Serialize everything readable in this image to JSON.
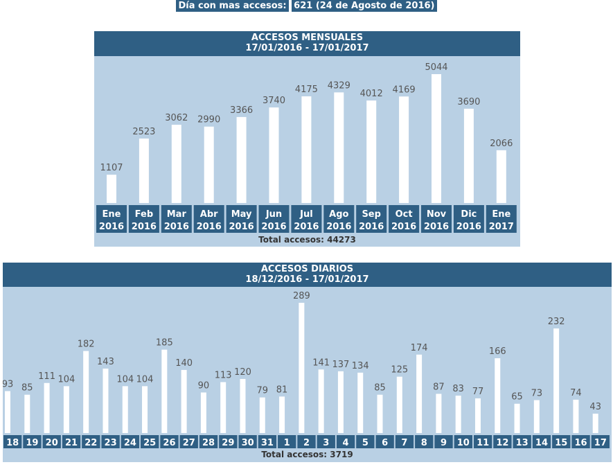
{
  "peak": {
    "label": "Día con mas accesos:",
    "value": "621 (24 de Agosto de 2016)"
  },
  "monthly": {
    "title": "ACCESOS MENSUALES",
    "range": "17/01/2016 - 17/01/2017",
    "total_label": "Total accesos:",
    "total_value": "44273"
  },
  "daily": {
    "title": "ACCESOS DIARIOS",
    "range": "18/12/2016 - 17/01/2017",
    "total_label": "Total accesos:",
    "total_value": "3719"
  },
  "colors": {
    "header": "#2f5f84",
    "panel": "#b9d0e4",
    "bar": "#ffffff",
    "label_text": "#555555"
  },
  "chart_data": [
    {
      "type": "bar",
      "title": "ACCESOS MENSUALES",
      "subtitle": "17/01/2016 - 17/01/2017",
      "categories": [
        [
          "Ene",
          "2016"
        ],
        [
          "Feb",
          "2016"
        ],
        [
          "Mar",
          "2016"
        ],
        [
          "Abr",
          "2016"
        ],
        [
          "May",
          "2016"
        ],
        [
          "Jun",
          "2016"
        ],
        [
          "Jul",
          "2016"
        ],
        [
          "Ago",
          "2016"
        ],
        [
          "Sep",
          "2016"
        ],
        [
          "Oct",
          "2016"
        ],
        [
          "Nov",
          "2016"
        ],
        [
          "Dic",
          "2016"
        ],
        [
          "Ene",
          "2017"
        ]
      ],
      "values": [
        1107,
        2523,
        3062,
        2990,
        3366,
        3740,
        4175,
        4329,
        4012,
        4169,
        5044,
        3690,
        2066
      ],
      "ymax": 5044,
      "grid": false
    },
    {
      "type": "bar",
      "title": "ACCESOS DIARIOS",
      "subtitle": "18/12/2016 - 17/01/2017",
      "categories": [
        "18",
        "19",
        "20",
        "21",
        "22",
        "23",
        "24",
        "25",
        "26",
        "27",
        "28",
        "29",
        "30",
        "31",
        "1",
        "2",
        "3",
        "4",
        "5",
        "6",
        "7",
        "8",
        "9",
        "10",
        "11",
        "12",
        "13",
        "14",
        "15",
        "16",
        "17"
      ],
      "values": [
        93,
        85,
        111,
        104,
        182,
        143,
        104,
        104,
        185,
        140,
        90,
        113,
        120,
        79,
        81,
        289,
        141,
        137,
        134,
        85,
        125,
        174,
        87,
        83,
        77,
        166,
        65,
        73,
        232,
        74,
        43
      ],
      "ymax": 289,
      "grid": false
    }
  ]
}
